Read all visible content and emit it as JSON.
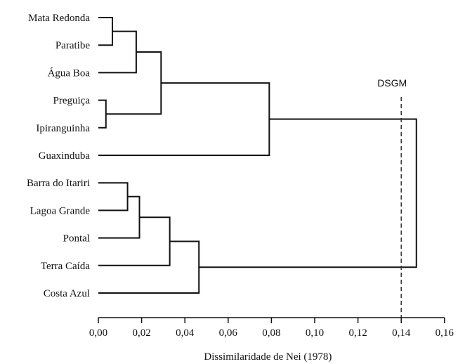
{
  "chart_data": {
    "type": "dendrogram",
    "xlabel": "Dissimilaridade de Nei (1978)",
    "xlim": [
      0,
      0.16
    ],
    "xticks": [
      {
        "value": 0.0,
        "label": "0,00"
      },
      {
        "value": 0.02,
        "label": "0,02"
      },
      {
        "value": 0.04,
        "label": "0,04"
      },
      {
        "value": 0.06,
        "label": "0,06"
      },
      {
        "value": 0.08,
        "label": "0,08"
      },
      {
        "value": 0.1,
        "label": "0,10"
      },
      {
        "value": 0.12,
        "label": "0,12"
      },
      {
        "value": 0.14,
        "label": "0,14"
      },
      {
        "value": 0.16,
        "label": "0,16"
      }
    ],
    "leaves": [
      "Mata Redonda",
      "Paratibe",
      "Água Boa",
      "Preguiça",
      "Ipiranguinha",
      "Guaxinduba",
      "Barra do Itariri",
      "Lagoa Grande",
      "Pontal",
      "Terra Caída",
      "Costa Azul"
    ],
    "merges": [
      {
        "id": "m1",
        "left": "Mata Redonda",
        "right": "Paratibe",
        "height": 0.0065
      },
      {
        "id": "m2",
        "left": "m1",
        "right": "Água Boa",
        "height": 0.0175
      },
      {
        "id": "m3",
        "left": "Preguiça",
        "right": "Ipiranguinha",
        "height": 0.0035
      },
      {
        "id": "m4",
        "left": "m2",
        "right": "m3",
        "height": 0.029
      },
      {
        "id": "m5",
        "left": "m4",
        "right": "Guaxinduba",
        "height": 0.079
      },
      {
        "id": "m6",
        "left": "Barra do Itariri",
        "right": "Lagoa Grande",
        "height": 0.0135
      },
      {
        "id": "m7",
        "left": "m6",
        "right": "Pontal",
        "height": 0.019
      },
      {
        "id": "m8",
        "left": "m7",
        "right": "Terra Caída",
        "height": 0.033
      },
      {
        "id": "m9",
        "left": "m8",
        "right": "Costa Azul",
        "height": 0.0465
      },
      {
        "id": "m10",
        "left": "m5",
        "right": "m9",
        "height": 0.147
      }
    ],
    "threshold": {
      "label": "DSGM",
      "value": 0.14
    }
  }
}
